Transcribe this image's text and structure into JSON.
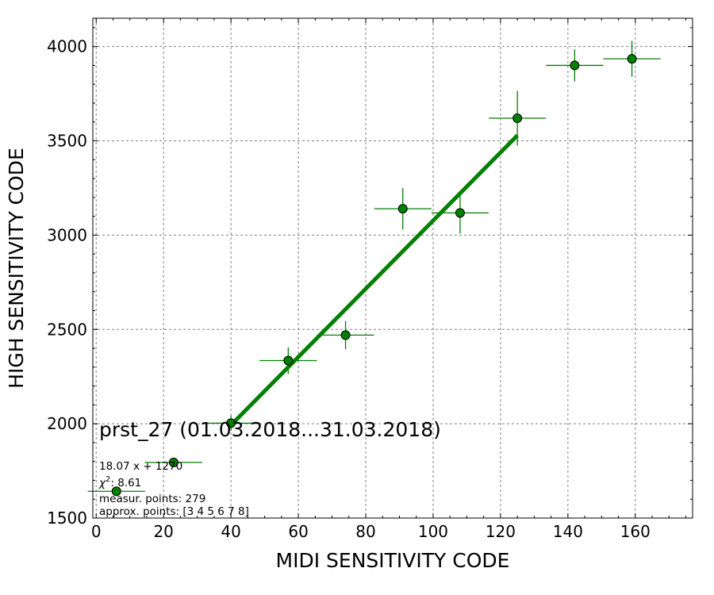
{
  "chart_data": {
    "type": "scatter",
    "xlabel": "MIDI SENSITIVITY CODE",
    "ylabel": "HIGH SENSITIVITY CODE",
    "xlim": [
      -1,
      177
    ],
    "ylim": [
      1500,
      4150
    ],
    "xticks": [
      0,
      20,
      40,
      60,
      80,
      100,
      120,
      140,
      160
    ],
    "yticks": [
      1500,
      2000,
      2500,
      3000,
      3500,
      4000
    ],
    "grid": true,
    "colors": {
      "series": "#008000",
      "marker_edge": "#000000",
      "grid": "#808080"
    },
    "points": [
      {
        "x": 6,
        "y": 1642,
        "xerr": 8.5,
        "yerr": 0
      },
      {
        "x": 23,
        "y": 1795,
        "xerr": 8.5,
        "yerr": 0
      },
      {
        "x": 40,
        "y": 2003,
        "xerr": 8.5,
        "yerr": 40
      },
      {
        "x": 57,
        "y": 2335,
        "xerr": 8.5,
        "yerr": 70
      },
      {
        "x": 74,
        "y": 2470,
        "xerr": 8.5,
        "yerr": 75
      },
      {
        "x": 91,
        "y": 3140,
        "xerr": 8.5,
        "yerr": 110
      },
      {
        "x": 108,
        "y": 3118,
        "xerr": 8.5,
        "yerr": 110
      },
      {
        "x": 125,
        "y": 3620,
        "xerr": 8.5,
        "yerr": 145
      },
      {
        "x": 142,
        "y": 3900,
        "xerr": 8.5,
        "yerr": 85
      },
      {
        "x": 159,
        "y": 3935,
        "xerr": 8.5,
        "yerr": 95
      }
    ],
    "fit_line": {
      "slope": 18.07,
      "intercept": 1270,
      "x_range": [
        40,
        125
      ]
    },
    "annotations": {
      "title": "prst_27 (01.03.2018...31.03.2018)",
      "equation": "18.07 x + 1270",
      "chi2_symbol": "χ",
      "chi2_exp": "2",
      "chi2_value": ": 8.61",
      "measur": "measur. points: 279",
      "approx": "approx. points: [3 4 5 6 7 8]"
    }
  }
}
